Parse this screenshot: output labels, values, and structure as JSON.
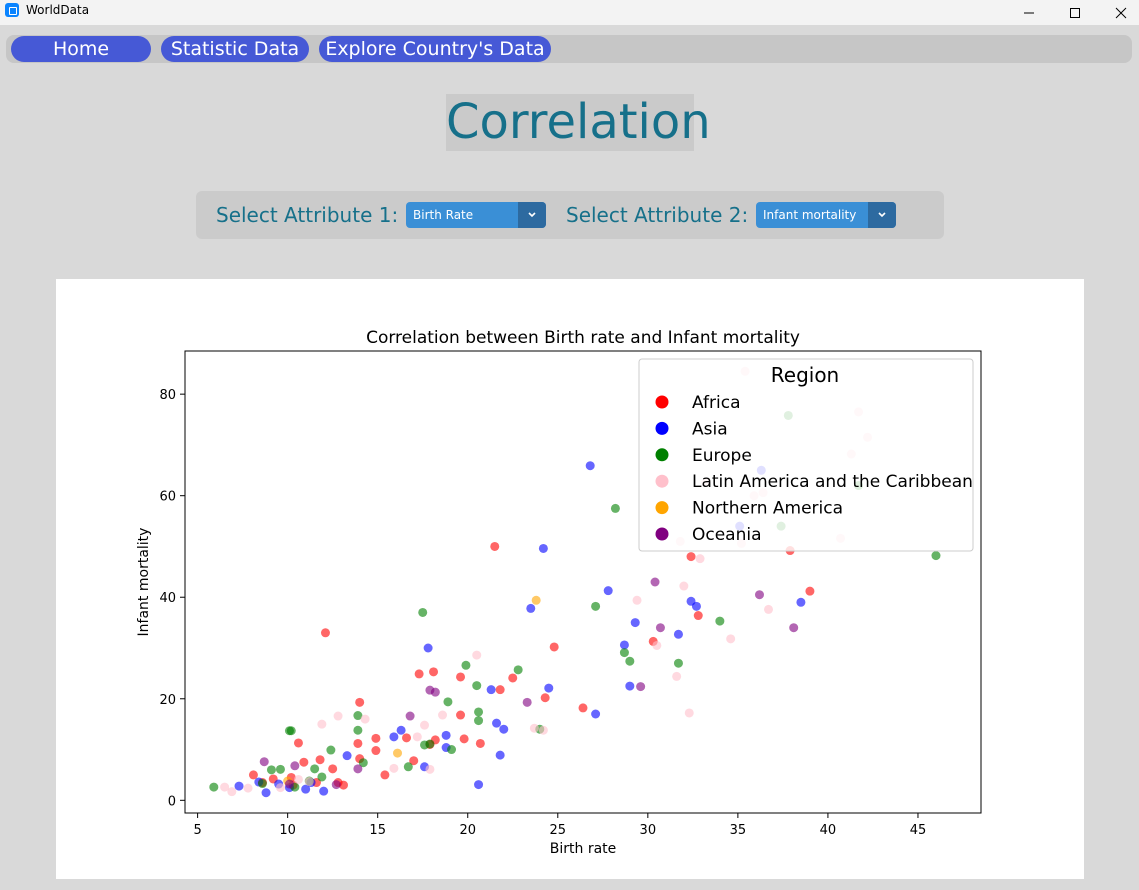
{
  "window": {
    "title": "WorldData"
  },
  "nav": {
    "home": "Home",
    "statistic": "Statistic Data",
    "explore": "Explore Country's Data"
  },
  "page": {
    "title": "Correlation"
  },
  "selectors": {
    "attr1_label": "Select Attribute 1:",
    "attr1_value": "Birth Rate",
    "attr2_label": "Select Attribute 2:",
    "attr2_value": "Infant mortality"
  },
  "chart_data": {
    "type": "scatter",
    "title": "Correlation between Birth rate and Infant mortality",
    "xlabel": "Birth rate",
    "ylabel": "Infant mortality",
    "xlim": [
      4.3,
      48.5
    ],
    "ylim": [
      -2.5,
      88.5
    ],
    "xticks": [
      5,
      10,
      15,
      20,
      25,
      30,
      35,
      40,
      45
    ],
    "yticks": [
      0,
      20,
      40,
      60,
      80
    ],
    "legend": {
      "title": "Region",
      "placement": "top-right"
    },
    "series": [
      {
        "name": "Africa",
        "color": "#ff0000",
        "points": [
          [
            8.1,
            5
          ],
          [
            8.6,
            3.5
          ],
          [
            9.2,
            4.2
          ],
          [
            10.2,
            4.5
          ],
          [
            10.6,
            11.3
          ],
          [
            10.9,
            7.5
          ],
          [
            11.6,
            3.5
          ],
          [
            11.8,
            8
          ],
          [
            12.1,
            33
          ],
          [
            12.5,
            6.2
          ],
          [
            13.1,
            3
          ],
          [
            13.9,
            11.2
          ],
          [
            14,
            19.3
          ],
          [
            14,
            8.2
          ],
          [
            14.9,
            12.2
          ],
          [
            14.9,
            9.8
          ],
          [
            15.4,
            5
          ],
          [
            16.6,
            12.3
          ],
          [
            17,
            7.8
          ],
          [
            17.3,
            24.9
          ],
          [
            17.9,
            11
          ],
          [
            18.1,
            25.3
          ],
          [
            18.2,
            11.9
          ],
          [
            19.6,
            24.3
          ],
          [
            19.6,
            16.8
          ],
          [
            19.8,
            12.1
          ],
          [
            20.7,
            11.2
          ],
          [
            21.5,
            50
          ],
          [
            21.8,
            21.8
          ],
          [
            22.5,
            24.1
          ],
          [
            24.3,
            20.2
          ],
          [
            24.8,
            30.2
          ],
          [
            26.4,
            18.2
          ],
          [
            30.3,
            31.3
          ],
          [
            32.4,
            48
          ],
          [
            32.8,
            36.4
          ],
          [
            37.9,
            49.2
          ],
          [
            39,
            41.2
          ],
          [
            10.3,
            3
          ],
          [
            12.8,
            3.5
          ]
        ]
      },
      {
        "name": "Asia",
        "color": "#0000ff",
        "points": [
          [
            7.3,
            2.8
          ],
          [
            8.4,
            3.6
          ],
          [
            8.8,
            1.5
          ],
          [
            9.5,
            3.2
          ],
          [
            10.1,
            2.5
          ],
          [
            11,
            2.2
          ],
          [
            11.3,
            3.5
          ],
          [
            12,
            1.8
          ],
          [
            13.3,
            8.8
          ],
          [
            15.9,
            12.5
          ],
          [
            16.3,
            13.8
          ],
          [
            17.6,
            6.6
          ],
          [
            17.8,
            30
          ],
          [
            18.8,
            12.8
          ],
          [
            18.8,
            10.4
          ],
          [
            20.6,
            3.1
          ],
          [
            21.3,
            21.8
          ],
          [
            21.6,
            15.2
          ],
          [
            21.8,
            8.9
          ],
          [
            22,
            14
          ],
          [
            23.5,
            37.8
          ],
          [
            24.2,
            49.6
          ],
          [
            24.5,
            22.1
          ],
          [
            26.8,
            65.9
          ],
          [
            27.1,
            17
          ],
          [
            27.8,
            41.3
          ],
          [
            28.7,
            30.6
          ],
          [
            29,
            22.5
          ],
          [
            29.3,
            35
          ],
          [
            31.7,
            32.7
          ],
          [
            32.4,
            39.2
          ],
          [
            32.7,
            38.2
          ],
          [
            35.1,
            54
          ],
          [
            36.3,
            65
          ],
          [
            38.5,
            39
          ]
        ]
      },
      {
        "name": "Europe",
        "color": "#008000",
        "points": [
          [
            5.9,
            2.6
          ],
          [
            8.6,
            3.3
          ],
          [
            9.1,
            6
          ],
          [
            9.6,
            6.1
          ],
          [
            10.1,
            13.7
          ],
          [
            10.2,
            13.7
          ],
          [
            10.4,
            2.6
          ],
          [
            11.2,
            3.8
          ],
          [
            11.5,
            6.2
          ],
          [
            11.9,
            4.6
          ],
          [
            12.4,
            9.9
          ],
          [
            13.9,
            13.8
          ],
          [
            13.9,
            16.7
          ],
          [
            14.2,
            7.4
          ],
          [
            16.7,
            6.6
          ],
          [
            17.5,
            37
          ],
          [
            17.6,
            10.9
          ],
          [
            17.9,
            11.1
          ],
          [
            18.9,
            19.4
          ],
          [
            19.1,
            10
          ],
          [
            19.9,
            26.6
          ],
          [
            20.5,
            22.6
          ],
          [
            20.6,
            17.4
          ],
          [
            20.6,
            15.7
          ],
          [
            22.8,
            25.7
          ],
          [
            24,
            14
          ],
          [
            27.1,
            38.2
          ],
          [
            28.2,
            57.5
          ],
          [
            28.7,
            29.1
          ],
          [
            29,
            27.4
          ],
          [
            31.7,
            27
          ],
          [
            34,
            35.3
          ],
          [
            37.8,
            75.8
          ],
          [
            46,
            48.2
          ],
          [
            37.4,
            54
          ],
          [
            41.7,
            62
          ]
        ]
      },
      {
        "name": "Latin America and the Caribbean",
        "color": "#ffc0cb",
        "points": [
          [
            6.5,
            2.6
          ],
          [
            6.9,
            1.7
          ],
          [
            7.8,
            2.4
          ],
          [
            9.6,
            2.5
          ],
          [
            10.6,
            4.1
          ],
          [
            11.2,
            3.7
          ],
          [
            11.9,
            15
          ],
          [
            12.8,
            16.6
          ],
          [
            14.3,
            16
          ],
          [
            15.9,
            6.3
          ],
          [
            17.2,
            12.5
          ],
          [
            17.6,
            14.8
          ],
          [
            17.9,
            6.1
          ],
          [
            18.6,
            16.8
          ],
          [
            20.5,
            28.6
          ],
          [
            23.7,
            14.2
          ],
          [
            24.2,
            13.8
          ],
          [
            29.4,
            39.4
          ],
          [
            30.5,
            30.5
          ],
          [
            31.6,
            24.4
          ],
          [
            32,
            42.2
          ],
          [
            32.3,
            17.2
          ],
          [
            32.9,
            47.6
          ],
          [
            33.2,
            62.5
          ],
          [
            34.6,
            31.8
          ],
          [
            35.2,
            50.6
          ],
          [
            35.9,
            60
          ],
          [
            36.4,
            60.6
          ],
          [
            36.7,
            37.6
          ],
          [
            35.4,
            84.5
          ],
          [
            40.7,
            51.6
          ],
          [
            41.3,
            68.2
          ],
          [
            41.7,
            76.5
          ],
          [
            42.2,
            71.5
          ],
          [
            31.8,
            51
          ]
        ]
      },
      {
        "name": "Northern America",
        "color": "#ffa500",
        "points": [
          [
            10,
            3.8
          ],
          [
            16.1,
            9.3
          ],
          [
            23.8,
            39.4
          ]
        ]
      },
      {
        "name": "Oceania",
        "color": "#800080",
        "points": [
          [
            8.7,
            7.6
          ],
          [
            10.1,
            3.2
          ],
          [
            10.4,
            6.8
          ],
          [
            12.7,
            3.1
          ],
          [
            13.9,
            6.2
          ],
          [
            16.8,
            16.6
          ],
          [
            17.9,
            21.7
          ],
          [
            18.2,
            21.3
          ],
          [
            23.3,
            19.3
          ],
          [
            29.6,
            22.4
          ],
          [
            30.4,
            43
          ],
          [
            30.7,
            34
          ],
          [
            36.2,
            40.5
          ],
          [
            38.1,
            34
          ]
        ]
      }
    ]
  }
}
